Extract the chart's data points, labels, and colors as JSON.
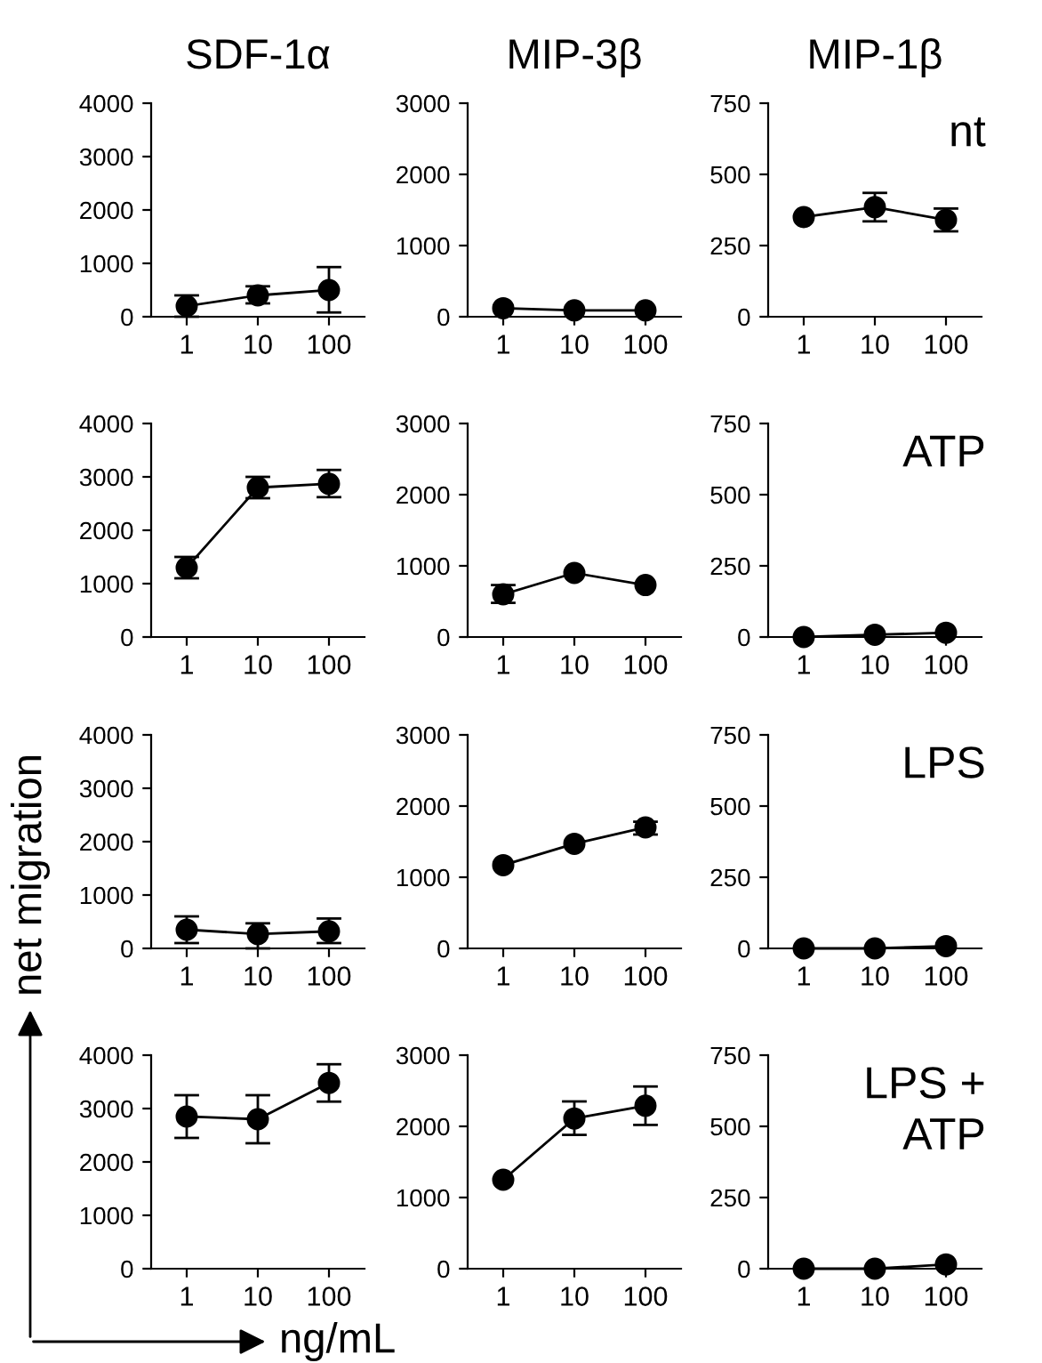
{
  "chart_data": [
    {
      "type": "line",
      "title": "SDF-1α",
      "categories": [
        "1",
        "10",
        "100"
      ],
      "values": [
        200,
        400,
        500
      ],
      "errors": [
        [
          0,
          400
        ],
        [
          250,
          570
        ],
        [
          80,
          930
        ]
      ],
      "ylim": [
        0,
        4000
      ],
      "yticks": [
        0,
        1000,
        2000,
        3000,
        4000
      ],
      "marker": "circle",
      "line_style": "solid",
      "color": "#000000"
    },
    {
      "type": "line",
      "title": "MIP-3β",
      "categories": [
        "1",
        "10",
        "100"
      ],
      "values": [
        120,
        90,
        90
      ],
      "ylim": [
        0,
        3000
      ],
      "yticks": [
        0,
        1000,
        2000,
        3000
      ],
      "marker": "circle",
      "line_style": "solid",
      "color": "#000000"
    },
    {
      "type": "line",
      "title": "MIP-1β",
      "categories": [
        "1",
        "10",
        "100"
      ],
      "values": [
        350,
        385,
        340
      ],
      "errors": [
        null,
        [
          335,
          435
        ],
        [
          300,
          380
        ]
      ],
      "ylim": [
        0,
        750
      ],
      "yticks": [
        0,
        250,
        500,
        750
      ],
      "marker": "circle",
      "line_style": "solid",
      "color": "#000000",
      "annotations": [
        "nt"
      ]
    },
    {
      "type": "line",
      "categories": [
        "1",
        "10",
        "100"
      ],
      "values": [
        1300,
        2800,
        2870
      ],
      "errors": [
        [
          1100,
          1500
        ],
        [
          2600,
          3000
        ],
        [
          2620,
          3130
        ]
      ],
      "ylim": [
        0,
        4000
      ],
      "yticks": [
        0,
        1000,
        2000,
        3000,
        4000
      ],
      "marker": "circle",
      "line_style": "solid",
      "color": "#000000"
    },
    {
      "type": "line",
      "categories": [
        "1",
        "10",
        "100"
      ],
      "values": [
        600,
        900,
        730
      ],
      "errors": [
        [
          480,
          730
        ],
        null,
        null
      ],
      "ylim": [
        0,
        3000
      ],
      "yticks": [
        0,
        1000,
        2000,
        3000
      ],
      "marker": "circle",
      "line_style": "solid",
      "color": "#000000"
    },
    {
      "type": "line",
      "categories": [
        "1",
        "10",
        "100"
      ],
      "values": [
        0,
        8,
        15
      ],
      "ylim": [
        0,
        750
      ],
      "yticks": [
        0,
        250,
        500,
        750
      ],
      "marker": "circle",
      "line_style": "solid",
      "color": "#000000",
      "annotations": [
        "ATP"
      ]
    },
    {
      "type": "line",
      "categories": [
        "1",
        "10",
        "100"
      ],
      "values": [
        350,
        270,
        320
      ],
      "errors": [
        [
          100,
          600
        ],
        [
          0,
          470
        ],
        [
          100,
          560
        ]
      ],
      "ylim": [
        0,
        4000
      ],
      "yticks": [
        0,
        1000,
        2000,
        3000,
        4000
      ],
      "marker": "circle",
      "line_style": "solid",
      "color": "#000000"
    },
    {
      "type": "line",
      "categories": [
        "1",
        "10",
        "100"
      ],
      "values": [
        1170,
        1470,
        1700
      ],
      "errors": [
        null,
        null,
        [
          1600,
          1780
        ]
      ],
      "ylim": [
        0,
        3000
      ],
      "yticks": [
        0,
        1000,
        2000,
        3000
      ],
      "marker": "circle",
      "line_style": "solid",
      "color": "#000000"
    },
    {
      "type": "line",
      "categories": [
        "1",
        "10",
        "100"
      ],
      "values": [
        0,
        0,
        8
      ],
      "ylim": [
        0,
        750
      ],
      "yticks": [
        0,
        250,
        500,
        750
      ],
      "marker": "circle",
      "line_style": "solid",
      "color": "#000000",
      "annotations": [
        "LPS"
      ]
    },
    {
      "type": "line",
      "xlabel": "ng/mL",
      "ylabel": "net migration",
      "categories": [
        "1",
        "10",
        "100"
      ],
      "values": [
        2850,
        2800,
        3480
      ],
      "errors": [
        [
          2450,
          3250
        ],
        [
          2350,
          3250
        ],
        [
          3130,
          3830
        ]
      ],
      "ylim": [
        0,
        4000
      ],
      "yticks": [
        0,
        1000,
        2000,
        3000,
        4000
      ],
      "marker": "circle",
      "line_style": "solid",
      "color": "#000000"
    },
    {
      "type": "line",
      "categories": [
        "1",
        "10",
        "100"
      ],
      "values": [
        1250,
        2110,
        2290
      ],
      "errors": [
        null,
        [
          1880,
          2350
        ],
        [
          2020,
          2560
        ]
      ],
      "ylim": [
        0,
        3000
      ],
      "yticks": [
        0,
        1000,
        2000,
        3000
      ],
      "marker": "circle",
      "line_style": "solid",
      "color": "#000000"
    },
    {
      "type": "line",
      "categories": [
        "1",
        "10",
        "100"
      ],
      "values": [
        0,
        0,
        15
      ],
      "ylim": [
        0,
        750
      ],
      "yticks": [
        0,
        250,
        500,
        750
      ],
      "marker": "circle",
      "line_style": "solid",
      "color": "#000000",
      "annotations": [
        "LPS +\nATP"
      ]
    }
  ]
}
